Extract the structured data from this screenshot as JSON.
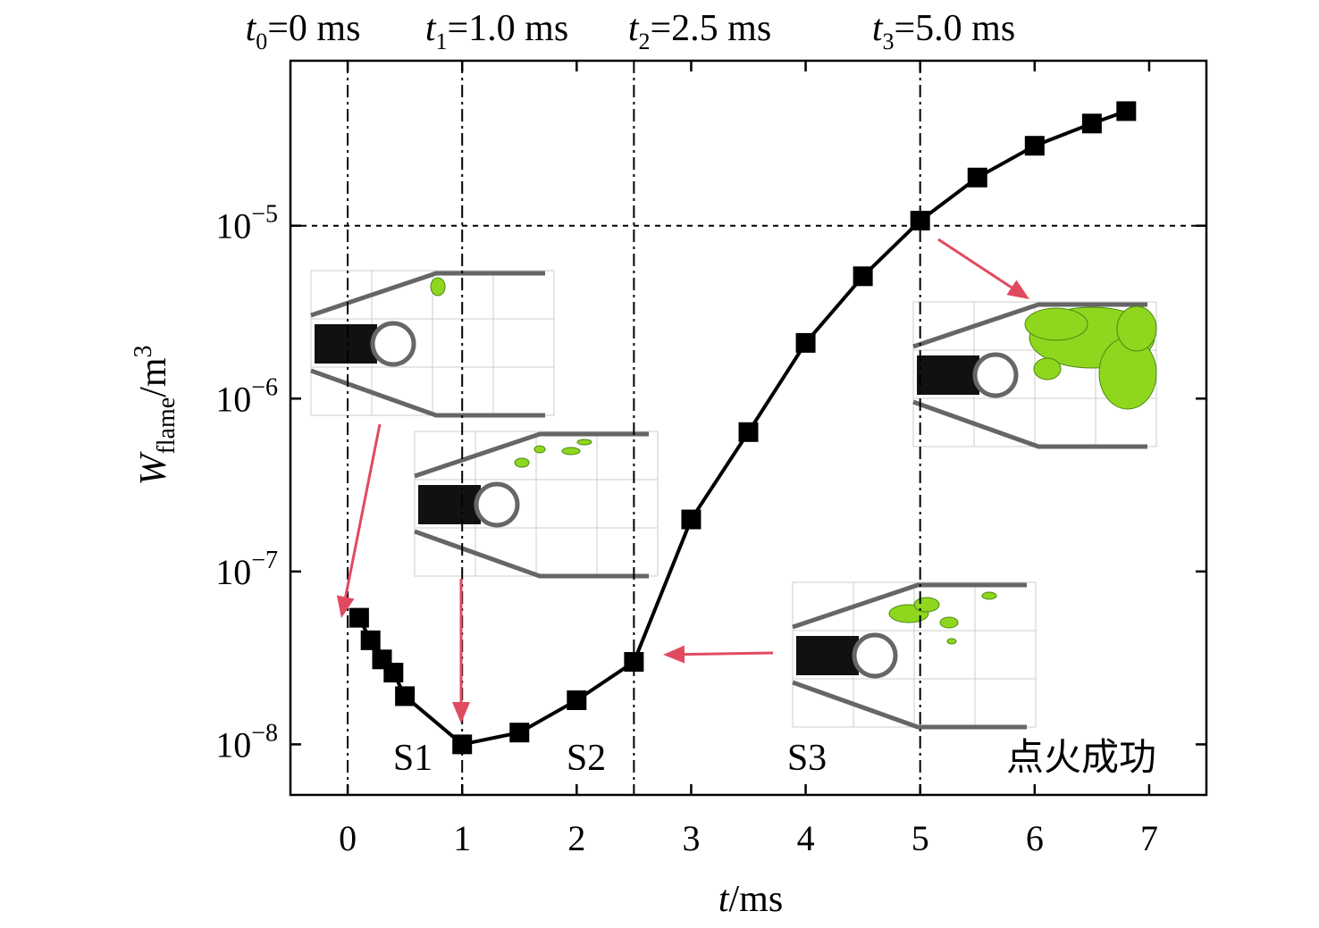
{
  "chart_data": {
    "type": "line",
    "scale_y": "log",
    "top_labels": [
      {
        "symbol": "t",
        "sub": "0",
        "rest": "=0 ms"
      },
      {
        "symbol": "t",
        "sub": "1",
        "rest": "=1.0 ms"
      },
      {
        "symbol": "t",
        "sub": "2",
        "rest": "=2.5 ms"
      },
      {
        "symbol": "t",
        "sub": "3",
        "rest": "=5.0 ms"
      }
    ],
    "stage_labels": [
      "S1",
      "S2",
      "S3",
      "点火成功"
    ],
    "x_label": {
      "symbol": "t",
      "rest": "/ms"
    },
    "y_label": {
      "symbol": "W",
      "sub": "flame",
      "rest": "/m",
      "sup": "3"
    },
    "x": [
      0.1,
      0.2,
      0.3,
      0.4,
      0.5,
      1.0,
      1.5,
      2.0,
      2.5,
      3.0,
      3.5,
      4.0,
      4.5,
      5.0,
      5.5,
      6.0,
      6.5,
      6.8
    ],
    "values": [
      5.4e-08,
      4e-08,
      3.1e-08,
      2.6e-08,
      1.9e-08,
      1e-08,
      1.17e-08,
      1.8e-08,
      3e-08,
      2e-07,
      6.4e-07,
      2.1e-06,
      5.1e-06,
      1.07e-05,
      1.9e-05,
      2.9e-05,
      3.9e-05,
      4.6e-05
    ],
    "color": "#000000",
    "xlim": [
      -0.5,
      7.5
    ],
    "xticks": [
      0,
      1,
      2,
      3,
      4,
      5,
      6,
      7
    ],
    "ylim": [
      5.1e-09,
      9e-05
    ],
    "yticks": [
      {
        "value": 1e-08,
        "label": "10−8"
      },
      {
        "value": 1e-07,
        "label": "10−7"
      },
      {
        "value": 1e-06,
        "label": "10−6"
      },
      {
        "value": 1e-05,
        "label": "10−5"
      }
    ],
    "vlines": [
      0,
      1,
      2.5,
      5
    ],
    "hline": 1e-05
  }
}
